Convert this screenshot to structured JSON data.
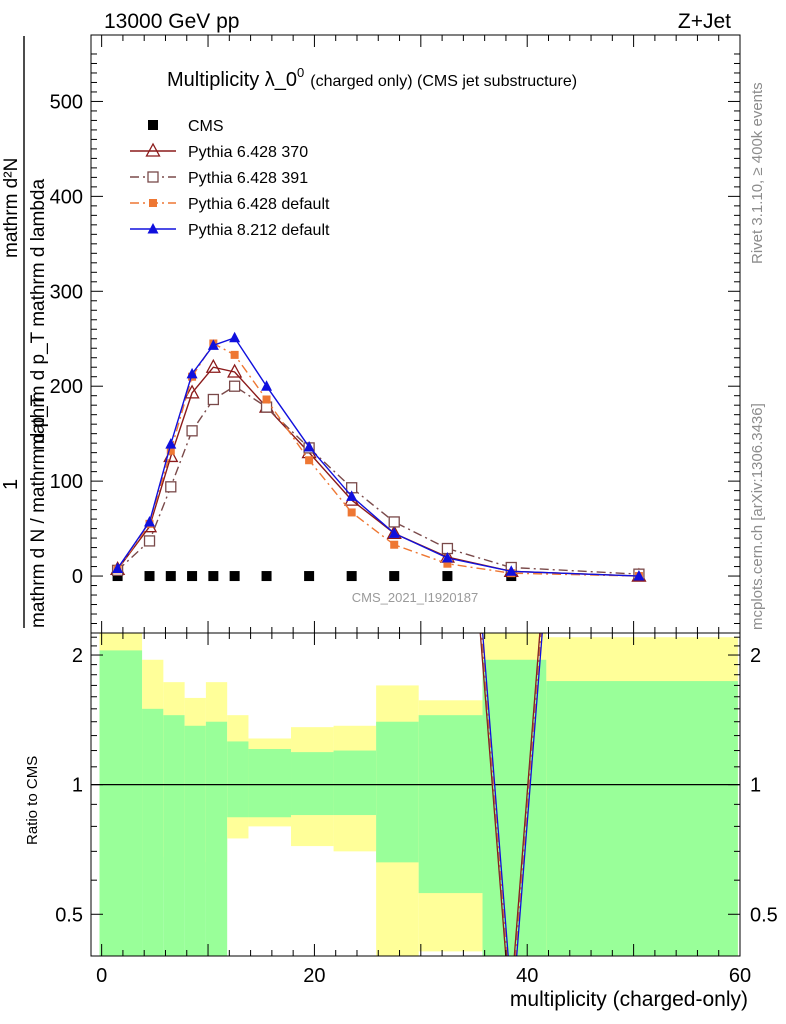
{
  "header": {
    "energy_label": "13000 GeV pp",
    "process_label": "Z+Jet",
    "side_rivet": "Rivet 3.1.10, ≥ 400k events",
    "side_site": "mcplots.cern.ch [arXiv:1306.3436]",
    "watermark": "CMS_2021_I1920187"
  },
  "chart_data": [
    {
      "type": "scatter",
      "title": "Multiplicity λ_0",
      "title_sup": "0",
      "title_suffix": "(charged only) (CMS jet substructure)",
      "ylabel_numerator": "mathrm d²N",
      "ylabel_line2": "mathrm d p_T mathrm d lambda",
      "ylabel_one": "1",
      "ylabel_denominator": "mathrm d N / mathrm d p_T",
      "xlim": [
        -1,
        60
      ],
      "ylim": [
        -60,
        570
      ],
      "yticks": [
        0,
        100,
        200,
        300,
        400,
        500
      ],
      "ytick_labels": [
        "0",
        "100",
        "200",
        "300",
        "400",
        "500"
      ],
      "x": [
        1.5,
        4.5,
        6.5,
        8.5,
        10.5,
        12.5,
        15.5,
        19.5,
        23.5,
        27.5,
        32.5,
        38.5,
        50.5
      ],
      "series": [
        {
          "name": "CMS",
          "color": "#000000",
          "marker": "square-filled",
          "line": "none",
          "values": [
            0,
            0,
            0,
            0,
            0,
            0,
            0,
            0,
            0,
            0,
            0,
            0,
            0
          ]
        },
        {
          "name": "Pythia 6.428 370",
          "color": "#8b1a1a",
          "marker": "triangle-open",
          "line": "solid",
          "values": [
            7,
            52,
            126,
            193,
            220,
            215,
            178,
            130,
            80,
            45,
            20,
            5,
            0
          ]
        },
        {
          "name": "Pythia 6.428 391",
          "color": "#7a4a4a",
          "marker": "square-open",
          "line": "dashdot",
          "values": [
            6,
            37,
            94,
            153,
            186,
            200,
            178,
            135,
            93,
            57,
            29,
            9,
            2
          ]
        },
        {
          "name": "Pythia 6.428 default",
          "color": "#ee7733",
          "marker": "square-filled",
          "line": "dashdot",
          "values": [
            7,
            55,
            132,
            210,
            245,
            233,
            186,
            122,
            67,
            33,
            13,
            3,
            0
          ]
        },
        {
          "name": "Pythia 8.212 default",
          "color": "#1010dd",
          "marker": "triangle-filled",
          "line": "solid",
          "values": [
            8,
            57,
            139,
            213,
            243,
            251,
            200,
            136,
            84,
            45,
            19,
            5,
            0
          ]
        }
      ]
    },
    {
      "type": "ratio",
      "ylabel": "Ratio to CMS",
      "xlabel": "multiplicity (charged-only)",
      "ylim": [
        0.4,
        2.25
      ],
      "yscale": "log",
      "xticks": [
        0,
        20,
        40,
        60
      ],
      "xtick_labels": [
        "0",
        "20",
        "40",
        "60"
      ],
      "yticks": [
        0.5,
        1,
        2
      ],
      "ytick_labels": [
        "0.5",
        "1",
        "2"
      ],
      "reference_line": 1,
      "bins": [
        {
          "lo": -0.2,
          "hi": 3.8,
          "green": [
            0.4,
            2.05
          ],
          "yellow": [
            0.4,
            2.3
          ]
        },
        {
          "lo": 3.8,
          "hi": 5.8,
          "green": [
            0.4,
            1.5
          ],
          "yellow": [
            0.6,
            1.95
          ]
        },
        {
          "lo": 5.8,
          "hi": 7.8,
          "green": [
            0.4,
            1.45
          ],
          "yellow": [
            0.68,
            1.73
          ]
        },
        {
          "lo": 7.8,
          "hi": 9.8,
          "green": [
            0.4,
            1.37
          ],
          "yellow": [
            0.6,
            1.59
          ]
        },
        {
          "lo": 9.8,
          "hi": 11.8,
          "green": [
            0.4,
            1.4
          ],
          "yellow": [
            0.66,
            1.73
          ]
        },
        {
          "lo": 11.8,
          "hi": 13.8,
          "green": [
            0.84,
            1.26
          ],
          "yellow": [
            0.75,
            1.45
          ]
        },
        {
          "lo": 13.8,
          "hi": 17.8,
          "green": [
            0.84,
            1.21
          ],
          "yellow": [
            0.8,
            1.28
          ]
        },
        {
          "lo": 17.8,
          "hi": 21.8,
          "green": [
            0.85,
            1.19
          ],
          "yellow": [
            0.72,
            1.36
          ]
        },
        {
          "lo": 21.8,
          "hi": 25.8,
          "green": [
            0.85,
            1.2
          ],
          "yellow": [
            0.7,
            1.37
          ]
        },
        {
          "lo": 25.8,
          "hi": 29.8,
          "green": [
            0.66,
            1.4
          ],
          "yellow": [
            0.4,
            1.7
          ]
        },
        {
          "lo": 29.8,
          "hi": 35.8,
          "green": [
            0.56,
            1.45
          ],
          "yellow": [
            0.41,
            1.57
          ]
        },
        {
          "lo": 35.8,
          "hi": 41.8,
          "green": [
            0.4,
            1.95
          ],
          "yellow": [
            0.4,
            2.3
          ]
        },
        {
          "lo": 41.8,
          "hi": 59.8,
          "green": [
            0.4,
            1.74
          ],
          "yellow": [
            0.4,
            2.2
          ]
        }
      ],
      "spike": {
        "x": [
          35.5,
          38.5,
          41.5
        ],
        "values": [
          2.6,
          0.3,
          2.6
        ]
      }
    }
  ]
}
